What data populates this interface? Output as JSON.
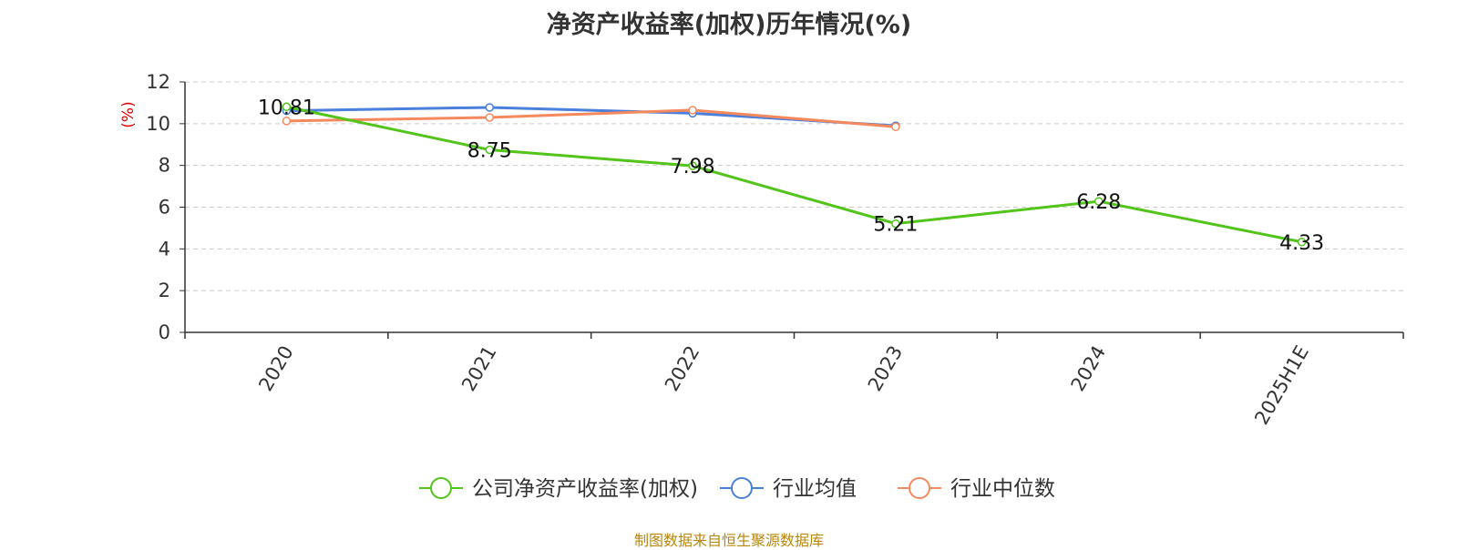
{
  "chart_data": {
    "type": "line",
    "title": "净资产收益率(加权)历年情况(%)",
    "ylabel": "(%)",
    "xlabel": "",
    "categories": [
      "2020",
      "2021",
      "2022",
      "2023",
      "2024",
      "2025H1E"
    ],
    "ylim": [
      0,
      12
    ],
    "yticks": [
      0,
      2,
      4,
      6,
      8,
      10,
      12
    ],
    "grid": true,
    "legend_position": "bottom",
    "series": [
      {
        "name": "公司净资产收益率(加权)",
        "color": "#52c41a",
        "values": [
          10.81,
          8.75,
          7.98,
          5.21,
          6.28,
          4.33
        ],
        "labels": [
          "10.81",
          "8.75",
          "7.98",
          "5.21",
          "6.28",
          "4.33"
        ]
      },
      {
        "name": "行业均值",
        "color": "#4a7fdc",
        "values": [
          10.62,
          10.78,
          10.5,
          9.9,
          null,
          null
        ]
      },
      {
        "name": "行业中位数",
        "color": "#f5895e",
        "values": [
          10.13,
          10.3,
          10.65,
          9.85,
          null,
          null
        ]
      }
    ]
  },
  "footer": {
    "source": "制图数据来自恒生聚源数据库"
  }
}
